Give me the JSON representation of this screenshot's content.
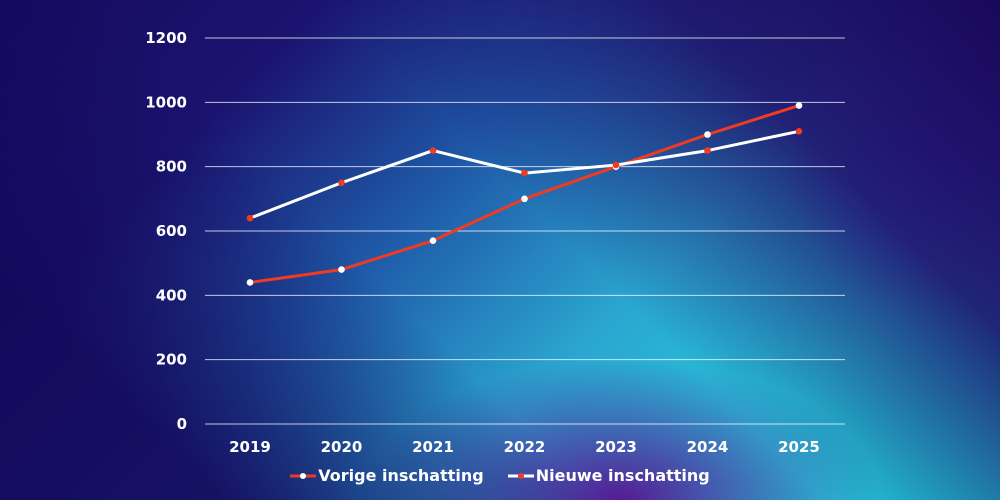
{
  "chart_data": {
    "type": "line",
    "title": "",
    "xlabel": "",
    "ylabel": "",
    "categories": [
      "2019",
      "2020",
      "2021",
      "2022",
      "2023",
      "2024",
      "2025"
    ],
    "ylim": [
      0,
      1200
    ],
    "yticks": [
      "0",
      "200",
      "400",
      "600",
      "800",
      "1000",
      "1200"
    ],
    "grid": true,
    "legend_position": "bottom",
    "series": [
      {
        "name": "Vorige inschatting",
        "line_color": "#f03a22",
        "marker_color": "#ffffff",
        "values": [
          440,
          480,
          570,
          700,
          800,
          900,
          990
        ]
      },
      {
        "name": "Nieuwe inschatting",
        "line_color": "#ffffff",
        "marker_color": "#f03a22",
        "values": [
          640,
          750,
          850,
          780,
          805,
          850,
          910
        ]
      }
    ]
  }
}
